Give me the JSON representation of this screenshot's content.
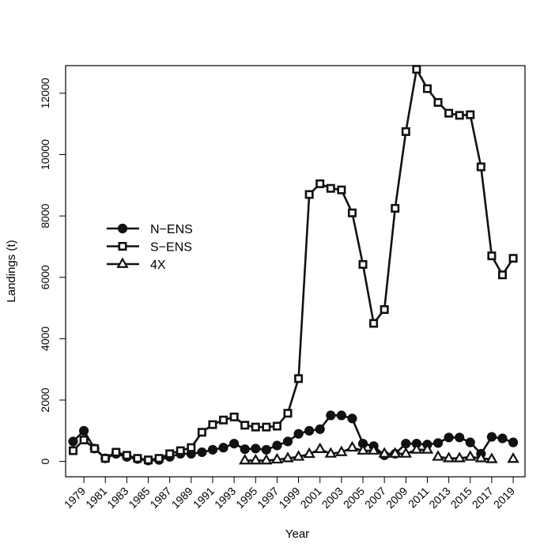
{
  "chart_data": {
    "type": "line",
    "xlabel": "Year",
    "ylabel": "Landings (t)",
    "xlim": [
      1977.3,
      2020.1
    ],
    "ylim": [
      -500,
      12900
    ],
    "x_ticks": [
      1979,
      1981,
      1983,
      1985,
      1987,
      1989,
      1991,
      1993,
      1995,
      1997,
      1999,
      2001,
      2003,
      2005,
      2007,
      2009,
      2011,
      2013,
      2015,
      2017,
      2019
    ],
    "y_ticks": [
      0,
      2000,
      4000,
      6000,
      8000,
      10000,
      12000
    ],
    "grid": false,
    "legend_position": "left",
    "series": [
      {
        "name": "N−ENS",
        "marker": "filled-circle",
        "x": [
          1978,
          1979,
          1980,
          1981,
          1982,
          1983,
          1984,
          1985,
          1986,
          1987,
          1988,
          1989,
          1990,
          1991,
          1992,
          1993,
          1994,
          1995,
          1996,
          1997,
          1998,
          1999,
          2000,
          2001,
          2002,
          2003,
          2004,
          2005,
          2006,
          2007,
          2008,
          2009,
          2010,
          2011,
          2012,
          2013,
          2014,
          2015,
          2016,
          2017,
          2018,
          2019
        ],
        "values": [
          650,
          1000,
          420,
          100,
          250,
          150,
          80,
          30,
          50,
          150,
          250,
          250,
          300,
          380,
          450,
          580,
          400,
          420,
          380,
          520,
          650,
          900,
          1000,
          1050,
          1500,
          1500,
          1400,
          580,
          500,
          200,
          250,
          580,
          580,
          550,
          600,
          780,
          780,
          620,
          250,
          800,
          750,
          620
        ]
      },
      {
        "name": "S−ENS",
        "marker": "open-square",
        "x": [
          1978,
          1979,
          1980,
          1981,
          1982,
          1983,
          1984,
          1985,
          1986,
          1987,
          1988,
          1989,
          1990,
          1991,
          1992,
          1993,
          1994,
          1995,
          1996,
          1997,
          1998,
          1999,
          2000,
          2001,
          2002,
          2003,
          2004,
          2005,
          2006,
          2007,
          2008,
          2009,
          2010,
          2011,
          2012,
          2013,
          2014,
          2015,
          2016,
          2017,
          2018,
          2019
        ],
        "values": [
          350,
          700,
          420,
          100,
          300,
          200,
          100,
          50,
          100,
          250,
          350,
          450,
          950,
          1200,
          1350,
          1450,
          1180,
          1120,
          1120,
          1150,
          1570,
          2700,
          8700,
          9050,
          8900,
          8850,
          8100,
          6420,
          4500,
          4950,
          8250,
          10750,
          12780,
          12150,
          11700,
          11350,
          11280,
          11300,
          9600,
          6700,
          6080,
          6620
        ]
      },
      {
        "name": "4X",
        "marker": "open-triangle",
        "x": [
          1994,
          1995,
          1996,
          1997,
          1998,
          1999,
          2000,
          2001,
          2002,
          2003,
          2004,
          2005,
          2006,
          2007,
          2008,
          2009,
          2010,
          2011,
          2012,
          2013,
          2014,
          2015,
          2016,
          2017,
          2019
        ],
        "values": [
          30,
          30,
          30,
          60,
          100,
          150,
          240,
          400,
          250,
          300,
          450,
          350,
          350,
          250,
          250,
          250,
          380,
          380,
          150,
          100,
          100,
          150,
          100,
          70,
          80
        ],
        "connected": [
          true,
          true,
          true,
          true,
          true,
          true,
          true,
          true,
          true,
          true,
          true,
          true,
          true,
          true,
          true,
          true,
          true,
          false,
          true,
          true,
          true,
          true,
          true,
          false
        ]
      }
    ]
  }
}
